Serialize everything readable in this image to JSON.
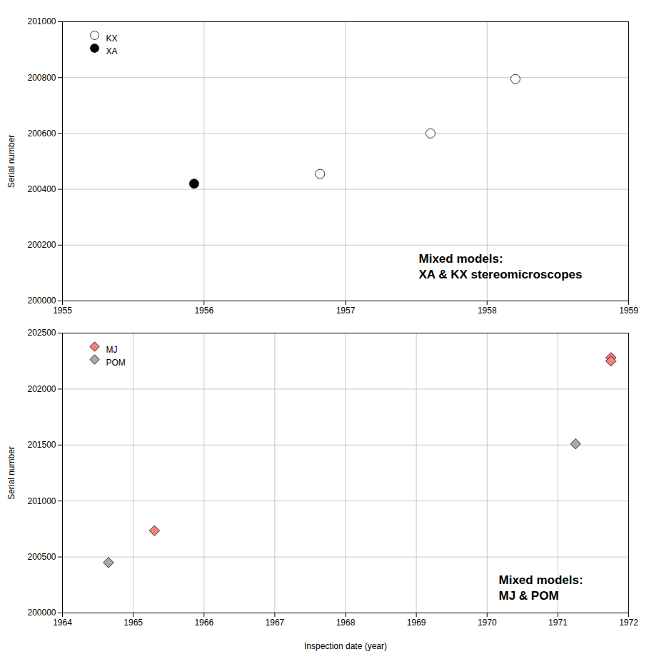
{
  "chart_data": [
    {
      "type": "scatter",
      "ylabel": "Serial number",
      "annotation": "Mixed models:\nXA & KX stereomicroscopes",
      "xlim": [
        1955,
        1959
      ],
      "xticks": [
        1955,
        1956,
        1957,
        1958,
        1959
      ],
      "ylim": [
        200000,
        201000
      ],
      "yticks": [
        200000,
        200200,
        200400,
        200600,
        200800,
        201000
      ],
      "grid": true,
      "legend": "top-left",
      "series": [
        {
          "name": "KX",
          "color": "#ffffff",
          "marker": "circle",
          "x": [
            1956.82,
            1957.6,
            1958.2
          ],
          "values": [
            200455,
            200600,
            200795
          ]
        },
        {
          "name": "XA",
          "color": "#000000",
          "marker": "circle",
          "x": [
            1955.93
          ],
          "values": [
            200420
          ]
        }
      ]
    },
    {
      "type": "scatter",
      "xlabel": "Inspection date (year)",
      "ylabel": "Serial number",
      "annotation": "Mixed models:\nMJ & POM",
      "xlim": [
        1964,
        1972
      ],
      "xticks": [
        1964,
        1965,
        1966,
        1967,
        1968,
        1969,
        1970,
        1971,
        1972
      ],
      "ylim": [
        200000,
        202500
      ],
      "yticks": [
        200000,
        200500,
        201000,
        201500,
        202000,
        202500
      ],
      "grid": true,
      "legend": "top-left",
      "series": [
        {
          "name": "MJ",
          "color": "#f4837d",
          "marker": "diamond",
          "x": [
            1965.3,
            1971.75,
            1971.75
          ],
          "values": [
            200735,
            202280,
            202250
          ]
        },
        {
          "name": "POM",
          "color": "#a9a9a9",
          "marker": "diamond",
          "x": [
            1964.65,
            1971.25
          ],
          "values": [
            200450,
            201510
          ]
        }
      ]
    }
  ]
}
